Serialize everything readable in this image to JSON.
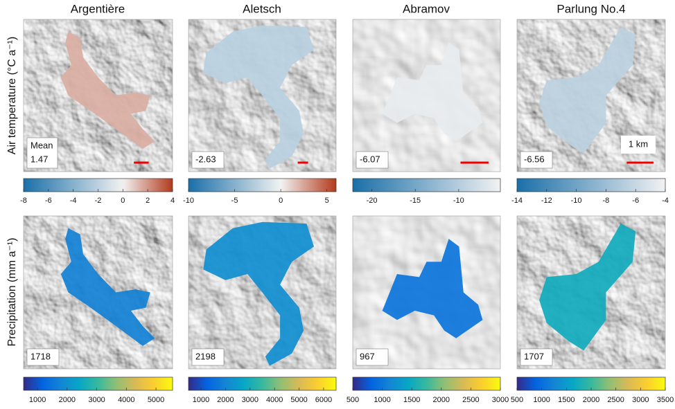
{
  "column_titles": [
    "Argentière",
    "Aletsch",
    "Abramov",
    "Parlung No.4"
  ],
  "row_labels": [
    "Air temperature (°C a⁻¹)",
    "Precipitation (mm a⁻¹)"
  ],
  "mean_label": "Mean",
  "scale_label": "1 km",
  "colormaps": {
    "diverging": [
      "#1a6fa8",
      "#f2f2f2",
      "#b23a1c"
    ],
    "parula": [
      "#352a87",
      "#0363e1",
      "#1485d4",
      "#06a7c6",
      "#38b99e",
      "#92bf73",
      "#d9ba56",
      "#fcce2e",
      "#f9fb0e"
    ]
  },
  "chart_data": [
    {
      "type": "map",
      "value": 1.47,
      "colormap": "diverging",
      "xlim": [
        -8,
        4
      ],
      "xticks": [
        -8,
        -6,
        -4,
        -2,
        0,
        2,
        4
      ]
    },
    {
      "type": "map",
      "value": -2.63,
      "colormap": "diverging",
      "xlim": [
        -10,
        6
      ],
      "xticks": [
        -10,
        -5,
        0,
        5
      ]
    },
    {
      "type": "map",
      "value": -6.07,
      "colormap": "diverging",
      "xlim": [
        -22.2,
        -5.2
      ],
      "xticks": [
        -20,
        -15,
        -10
      ]
    },
    {
      "type": "map",
      "value": -6.56,
      "colormap": "diverging",
      "xlim": [
        -14,
        -4
      ],
      "xticks": [
        -14,
        -12,
        -10,
        -8,
        -6,
        -4
      ]
    },
    {
      "type": "map",
      "value": 1718,
      "colormap": "parula",
      "xlim": [
        530,
        5560
      ],
      "xticks": [
        1000,
        2000,
        3000,
        4000,
        5000
      ]
    },
    {
      "type": "map",
      "value": 2198,
      "colormap": "parula",
      "xlim": [
        490,
        6510
      ],
      "xticks": [
        1000,
        2000,
        3000,
        4000,
        5000,
        6000
      ]
    },
    {
      "type": "map",
      "value": 967,
      "colormap": "parula",
      "xlim": [
        500,
        3000
      ],
      "xticks": [
        500,
        1000,
        1500,
        2000,
        2500,
        3000
      ]
    },
    {
      "type": "map",
      "value": 1707,
      "colormap": "parula",
      "xlim": [
        500,
        3500
      ],
      "xticks": [
        500,
        1000,
        1500,
        2000,
        2500,
        3000,
        3500
      ]
    }
  ]
}
